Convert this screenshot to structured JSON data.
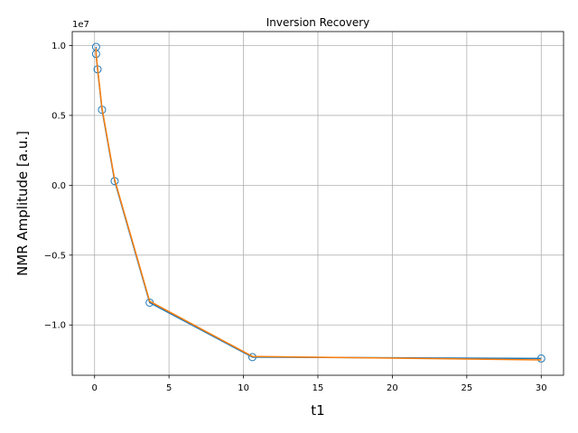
{
  "chart_data": {
    "type": "line",
    "title": "Inversion Recovery",
    "xlabel": "t1",
    "ylabel": "NMR Amplitude [a.u.]",
    "offset_label": "1e7",
    "xlim": [
      -1.5,
      31.5
    ],
    "ylim": [
      -13600000,
      11000000
    ],
    "xticks": [
      0,
      5,
      10,
      15,
      20,
      25,
      30
    ],
    "xtick_labels": [
      "0",
      "5",
      "10",
      "15",
      "20",
      "25",
      "30"
    ],
    "yticks": [
      10000000,
      5000000,
      0,
      -5000000,
      -10000000
    ],
    "ytick_labels": [
      "1.0",
      "0.5",
      "0.0",
      "−0.5",
      "−1.0"
    ],
    "grid": true,
    "series": [
      {
        "role": "data",
        "color": "#1f77b4",
        "marker": "open-circle",
        "line": true,
        "x": [
          0.1,
          0.1,
          0.2,
          0.5,
          1.35,
          3.7,
          10.6,
          30.0
        ],
        "y": [
          9900000,
          9400000,
          8300000,
          5400000,
          300000,
          -8400000,
          -12300000,
          -12400000
        ]
      },
      {
        "role": "fit",
        "color": "#ff7f0e",
        "marker": "none",
        "line": true,
        "x": [
          0.1,
          0.1,
          0.2,
          0.5,
          1.35,
          3.7,
          10.6,
          30.0
        ],
        "y": [
          9800000,
          9400000,
          8400000,
          5500000,
          400000,
          -8300000,
          -12250000,
          -12500000
        ]
      }
    ]
  }
}
